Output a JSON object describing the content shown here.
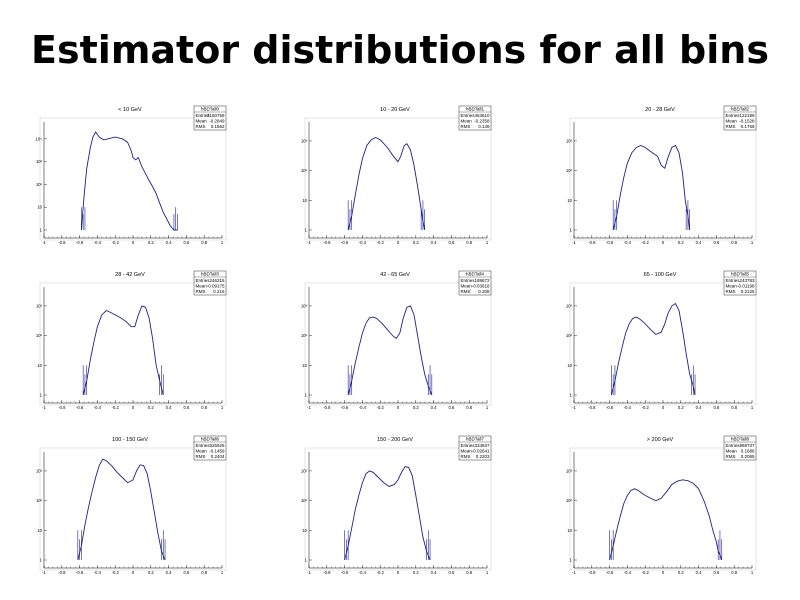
{
  "page": {
    "title": "Estimator distributions for all bins"
  },
  "colors": {
    "line": "#1f1f8f",
    "axis": "#000000",
    "stats_border": "#000000"
  },
  "chart_data": [
    {
      "type": "line",
      "title": "< 10 GeV",
      "stats": {
        "name": "hBDTall0",
        "Entries": "2160759",
        "Mean": "-0.2849",
        "RMS": "0.1562"
      },
      "xlim": [
        -1,
        1
      ],
      "x_tick_labels": [
        "-1",
        "-0.8",
        "-0.6",
        "-0.4",
        "-0.2",
        "0",
        "0.2",
        "0.4",
        "0.6",
        "0.8",
        "1"
      ],
      "y_log": true,
      "y_tick_labels": [
        "1",
        "10",
        "10²",
        "10³",
        "10⁴"
      ],
      "x": [
        -0.58,
        -0.55,
        -0.52,
        -0.48,
        -0.45,
        -0.42,
        -0.38,
        -0.33,
        -0.28,
        -0.2,
        -0.12,
        -0.06,
        -0.02,
        0.0,
        0.03,
        0.06,
        0.1,
        0.14,
        0.18,
        0.22,
        0.26,
        0.3,
        0.34,
        0.38,
        0.42,
        0.46,
        0.5
      ],
      "y": [
        1,
        30,
        500,
        4000,
        12000,
        20000,
        12000,
        9000,
        10000,
        12000,
        10000,
        7000,
        3000,
        1500,
        1200,
        1500,
        600,
        300,
        150,
        80,
        40,
        15,
        6,
        3,
        1.5,
        1,
        1
      ]
    },
    {
      "type": "line",
      "title": "10 - 20 GeV",
      "stats": {
        "name": "hBDTall1",
        "Entries": "453610",
        "Mean": "-0.2358",
        "RMS": "0.149"
      },
      "xlim": [
        -1,
        1
      ],
      "x_tick_labels": [
        "-1",
        "-0.8",
        "-0.6",
        "-0.4",
        "-0.2",
        "0",
        "0.2",
        "0.4",
        "0.6",
        "0.8",
        "1"
      ],
      "y_log": true,
      "y_tick_labels": [
        "1",
        "10",
        "10²",
        "10³"
      ],
      "x": [
        -0.56,
        -0.52,
        -0.48,
        -0.44,
        -0.4,
        -0.35,
        -0.3,
        -0.25,
        -0.2,
        -0.12,
        -0.05,
        0.0,
        0.03,
        0.07,
        0.1,
        0.14,
        0.18,
        0.22,
        0.26,
        0.28,
        0.3
      ],
      "y": [
        1,
        3,
        15,
        70,
        250,
        700,
        1100,
        1300,
        1100,
        600,
        300,
        200,
        300,
        700,
        800,
        500,
        150,
        30,
        5,
        2,
        1
      ]
    },
    {
      "type": "line",
      "title": "20 - 28 GeV",
      "stats": {
        "name": "hBDTall2",
        "Entries": "122199",
        "Mean": "-0.1528",
        "RMS": "0.1765"
      },
      "xlim": [
        -1,
        1
      ],
      "x_tick_labels": [
        "-1",
        "-0.8",
        "-0.6",
        "-0.4",
        "-0.2",
        "0",
        "0.2",
        "0.4",
        "0.6",
        "0.8",
        "1"
      ],
      "y_log": true,
      "y_tick_labels": [
        "1",
        "10",
        "10²",
        "10³"
      ],
      "x": [
        -0.56,
        -0.52,
        -0.48,
        -0.44,
        -0.4,
        -0.35,
        -0.3,
        -0.25,
        -0.2,
        -0.12,
        -0.06,
        -0.02,
        0.02,
        0.06,
        0.1,
        0.14,
        0.18,
        0.22,
        0.25,
        0.28,
        0.3
      ],
      "y": [
        1,
        3,
        15,
        60,
        180,
        400,
        600,
        700,
        600,
        400,
        300,
        150,
        120,
        300,
        600,
        700,
        400,
        80,
        10,
        3,
        1
      ]
    },
    {
      "type": "line",
      "title": "28 - 42 GeV",
      "stats": {
        "name": "hBDTall3",
        "Entries": "246315",
        "Mean": "-0.09175",
        "RMS": "0.216"
      },
      "xlim": [
        -1,
        1
      ],
      "x_tick_labels": [
        "-1",
        "-0.8",
        "-0.6",
        "-0.4",
        "-0.2",
        "0",
        "0.2",
        "0.4",
        "0.6",
        "0.8",
        "1"
      ],
      "y_log": true,
      "y_tick_labels": [
        "1",
        "10",
        "10²",
        "10³"
      ],
      "x": [
        -0.56,
        -0.52,
        -0.48,
        -0.44,
        -0.4,
        -0.35,
        -0.3,
        -0.25,
        -0.2,
        -0.14,
        -0.08,
        -0.02,
        0.02,
        0.06,
        0.1,
        0.14,
        0.18,
        0.22,
        0.26,
        0.3,
        0.34
      ],
      "y": [
        1,
        3,
        15,
        60,
        200,
        500,
        700,
        600,
        500,
        400,
        300,
        200,
        200,
        500,
        1000,
        900,
        400,
        80,
        10,
        3,
        1
      ]
    },
    {
      "type": "line",
      "title": "42 - 65 GeV",
      "stats": {
        "name": "hBDTall4",
        "Entries": "188672",
        "Mean": "-0.03618",
        "RMS": "0.208"
      },
      "xlim": [
        -1,
        1
      ],
      "x_tick_labels": [
        "-1",
        "-0.8",
        "-0.6",
        "-0.4",
        "-0.2",
        "0",
        "0.2",
        "0.4",
        "0.6",
        "0.8",
        "1"
      ],
      "y_log": true,
      "y_tick_labels": [
        "1",
        "10",
        "10²",
        "10³"
      ],
      "x": [
        -0.56,
        -0.52,
        -0.48,
        -0.44,
        -0.4,
        -0.36,
        -0.32,
        -0.28,
        -0.24,
        -0.18,
        -0.12,
        -0.06,
        -0.02,
        0.02,
        0.06,
        0.1,
        0.14,
        0.18,
        0.22,
        0.26,
        0.3,
        0.34,
        0.38
      ],
      "y": [
        1,
        3,
        12,
        40,
        120,
        260,
        400,
        420,
        380,
        260,
        160,
        100,
        80,
        120,
        400,
        900,
        1000,
        500,
        100,
        20,
        5,
        2,
        1
      ]
    },
    {
      "type": "line",
      "title": "65 - 100 GeV",
      "stats": {
        "name": "hBDTall5",
        "Entries": "243783",
        "Mean": "-0.01198",
        "RMS": "0.2125"
      },
      "xlim": [
        -1,
        1
      ],
      "x_tick_labels": [
        "-1",
        "-0.8",
        "-0.6",
        "-0.4",
        "-0.2",
        "0",
        "0.2",
        "0.4",
        "0.6",
        "0.8",
        "1"
      ],
      "y_log": true,
      "y_tick_labels": [
        "1",
        "10",
        "10²",
        "10³"
      ],
      "x": [
        -0.58,
        -0.54,
        -0.5,
        -0.46,
        -0.42,
        -0.38,
        -0.34,
        -0.3,
        -0.26,
        -0.2,
        -0.14,
        -0.08,
        -0.02,
        0.02,
        0.06,
        0.1,
        0.14,
        0.18,
        0.22,
        0.26,
        0.3,
        0.34,
        0.36
      ],
      "y": [
        1,
        3,
        12,
        40,
        120,
        250,
        380,
        420,
        360,
        250,
        160,
        110,
        130,
        250,
        600,
        1000,
        1200,
        700,
        150,
        25,
        5,
        2,
        1
      ]
    },
    {
      "type": "line",
      "title": "100 - 150 GeV",
      "stats": {
        "name": "hBDTall6",
        "Entries": "525925",
        "Mean": "-0.1459",
        "RMS": "0.2404"
      },
      "xlim": [
        -1,
        1
      ],
      "x_tick_labels": [
        "-1",
        "-0.8",
        "-0.6",
        "-0.4",
        "-0.2",
        "0",
        "0.2",
        "0.4",
        "0.6",
        "0.8",
        "1"
      ],
      "y_log": true,
      "y_tick_labels": [
        "1",
        "10",
        "10²",
        "10³"
      ],
      "x": [
        -0.62,
        -0.58,
        -0.54,
        -0.5,
        -0.46,
        -0.42,
        -0.38,
        -0.34,
        -0.3,
        -0.24,
        -0.18,
        -0.12,
        -0.06,
        0.0,
        0.04,
        0.08,
        0.12,
        0.16,
        0.2,
        0.24,
        0.28,
        0.32,
        0.36
      ],
      "y": [
        1,
        3,
        15,
        60,
        200,
        600,
        1500,
        2500,
        2200,
        1500,
        900,
        600,
        400,
        500,
        1000,
        1600,
        1500,
        800,
        200,
        40,
        8,
        2,
        1
      ]
    },
    {
      "type": "line",
      "title": "150 - 200 GeV",
      "stats": {
        "name": "hBDTall7",
        "Entries": "334937",
        "Mean": "-0.02641",
        "RMS": "0.2203"
      },
      "xlim": [
        -1,
        1
      ],
      "x_tick_labels": [
        "-1",
        "-0.8",
        "-0.6",
        "-0.4",
        "-0.2",
        "0",
        "0.2",
        "0.4",
        "0.6",
        "0.8",
        "1"
      ],
      "y_log": true,
      "y_tick_labels": [
        "1",
        "10",
        "10²",
        "10³"
      ],
      "x": [
        -0.6,
        -0.56,
        -0.52,
        -0.48,
        -0.44,
        -0.4,
        -0.36,
        -0.32,
        -0.28,
        -0.22,
        -0.16,
        -0.1,
        -0.04,
        0.0,
        0.04,
        0.08,
        0.12,
        0.16,
        0.2,
        0.24,
        0.28,
        0.32,
        0.36
      ],
      "y": [
        1,
        3,
        12,
        50,
        150,
        400,
        800,
        1000,
        900,
        600,
        400,
        300,
        350,
        500,
        900,
        1400,
        1300,
        700,
        150,
        30,
        6,
        2,
        1
      ]
    },
    {
      "type": "line",
      "title": "> 200 GeV",
      "stats": {
        "name": "hBDTall8",
        "Entries": "868737",
        "Mean": "0.1686",
        "RMS": "0.2085"
      },
      "xlim": [
        -1,
        1
      ],
      "x_tick_labels": [
        "-1",
        "-0.8",
        "-0.6",
        "-0.4",
        "-0.2",
        "0",
        "0.2",
        "0.4",
        "0.6",
        "0.8",
        "1"
      ],
      "y_log": true,
      "y_tick_labels": [
        "1",
        "10",
        "10²",
        "10³"
      ],
      "x": [
        -0.6,
        -0.56,
        -0.52,
        -0.48,
        -0.44,
        -0.4,
        -0.36,
        -0.32,
        -0.28,
        -0.24,
        -0.2,
        -0.14,
        -0.08,
        -0.02,
        0.04,
        0.1,
        0.16,
        0.22,
        0.28,
        0.34,
        0.4,
        0.46,
        0.52,
        0.56,
        0.6,
        0.62,
        0.64,
        0.66
      ],
      "y": [
        1,
        3,
        10,
        30,
        80,
        150,
        220,
        250,
        220,
        180,
        150,
        120,
        100,
        120,
        200,
        350,
        450,
        500,
        470,
        380,
        250,
        100,
        30,
        10,
        4,
        2,
        1.5,
        1
      ]
    }
  ]
}
